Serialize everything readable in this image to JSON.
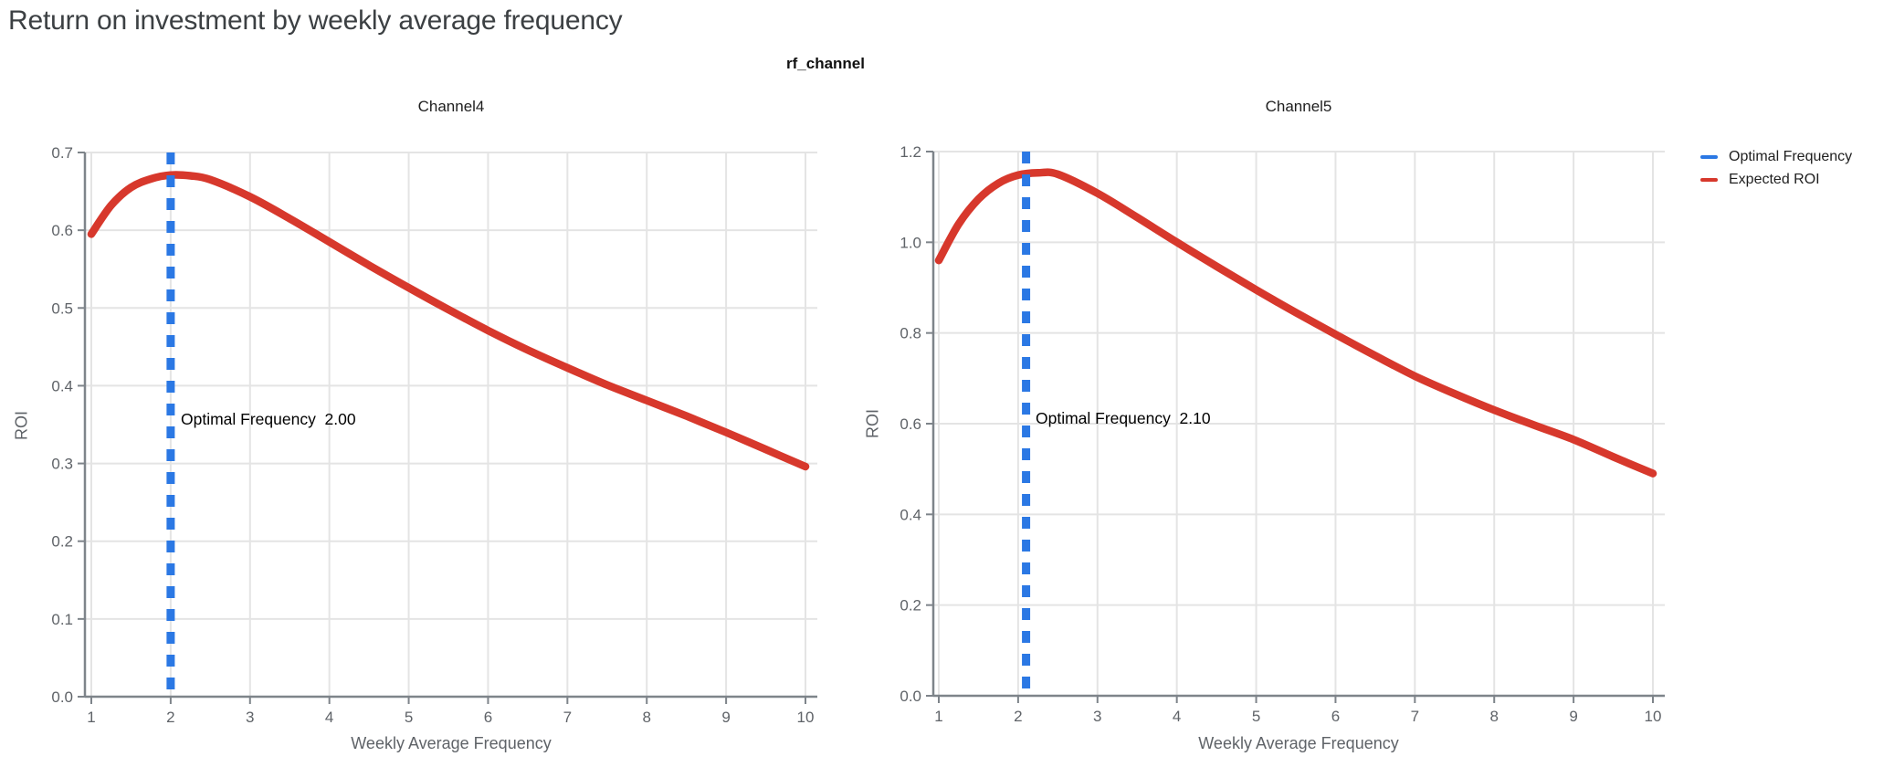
{
  "page_title": "Return on investment by weekly average frequency",
  "figure_title": "rf_channel",
  "legend": {
    "position": "top-right",
    "items": [
      {
        "label": "Optimal Frequency",
        "color": "#2b78e4",
        "style": "dashed"
      },
      {
        "label": "Expected ROI",
        "color": "#d7382c",
        "style": "solid"
      }
    ]
  },
  "colors": {
    "optimal_frequency_blue": "#2b78e4",
    "expected_roi_red": "#d7382c",
    "axis_line": "#7e848a",
    "gridline": "#e4e4e4",
    "tick_label": "#5f6368",
    "page_title": "#3c4043"
  },
  "chart_data": [
    {
      "type": "line",
      "title": "Channel4",
      "xlabel": "Weekly Average Frequency",
      "ylabel": "ROI",
      "xlim": [
        1,
        10
      ],
      "ylim": [
        0,
        0.7
      ],
      "xticks": [
        1,
        2,
        3,
        4,
        5,
        6,
        7,
        8,
        9,
        10
      ],
      "yticks": [
        0.0,
        0.1,
        0.2,
        0.3,
        0.4,
        0.5,
        0.6,
        0.7
      ],
      "ytick_decimals": 1,
      "grid": true,
      "optimal_frequency": 2.0,
      "annotation": "Optimal Frequency  2.00",
      "series": [
        {
          "name": "Expected ROI",
          "x": [
            1,
            1.25,
            1.5,
            1.75,
            2,
            2.25,
            2.5,
            3,
            3.5,
            4,
            4.5,
            5,
            5.5,
            6,
            6.5,
            7,
            7.5,
            8,
            8.5,
            9,
            9.5,
            10
          ],
          "y": [
            0.595,
            0.632,
            0.655,
            0.666,
            0.671,
            0.67,
            0.665,
            0.643,
            0.615,
            0.585,
            0.555,
            0.526,
            0.498,
            0.471,
            0.446,
            0.423,
            0.401,
            0.381,
            0.361,
            0.34,
            0.318,
            0.296
          ]
        }
      ]
    },
    {
      "type": "line",
      "title": "Channel5",
      "xlabel": "Weekly Average Frequency",
      "ylabel": "ROI",
      "xlim": [
        1,
        10
      ],
      "ylim": [
        0,
        1.2
      ],
      "xticks": [
        1,
        2,
        3,
        4,
        5,
        6,
        7,
        8,
        9,
        10
      ],
      "yticks": [
        0.0,
        0.2,
        0.4,
        0.6,
        0.8,
        1.0,
        1.2
      ],
      "ytick_decimals": 1,
      "grid": true,
      "optimal_frequency": 2.1,
      "annotation": "Optimal Frequency  2.10",
      "series": [
        {
          "name": "Expected ROI",
          "x": [
            1,
            1.25,
            1.5,
            1.75,
            2,
            2.25,
            2.5,
            3,
            3.5,
            4,
            4.5,
            5,
            5.5,
            6,
            6.5,
            7,
            7.5,
            8,
            8.5,
            9,
            9.5,
            10
          ],
          "y": [
            0.96,
            1.04,
            1.095,
            1.13,
            1.148,
            1.153,
            1.15,
            1.108,
            1.055,
            1.0,
            0.947,
            0.895,
            0.845,
            0.797,
            0.75,
            0.705,
            0.666,
            0.63,
            0.597,
            0.565,
            0.527,
            0.49
          ]
        }
      ]
    }
  ]
}
